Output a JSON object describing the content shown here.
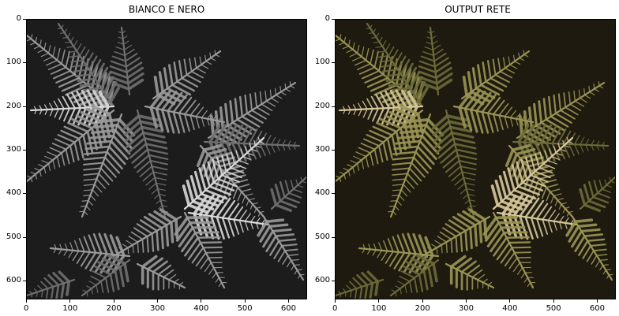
{
  "panels": [
    {
      "id": "left",
      "title": "BIANCO E NERO",
      "image_description": "grayscale fern foliage",
      "palette": {
        "bg": "#1c1c1c",
        "leaf_dark": "#6f6f6f",
        "leaf_mid": "#9a9a9a",
        "leaf_light": "#d9d9d9"
      }
    },
    {
      "id": "right",
      "title": "OUTPUT RETE",
      "image_description": "colorized fern foliage",
      "palette": {
        "bg": "#1e1a10",
        "leaf_dark": "#6b6a38",
        "leaf_mid": "#9a9453",
        "leaf_light": "#d7c79a"
      }
    }
  ],
  "axes": {
    "y_ticks": [
      "0",
      "100",
      "200",
      "300",
      "400",
      "500",
      "600"
    ],
    "x_ticks": [
      "0",
      "100",
      "200",
      "300",
      "400",
      "500",
      "600"
    ]
  }
}
